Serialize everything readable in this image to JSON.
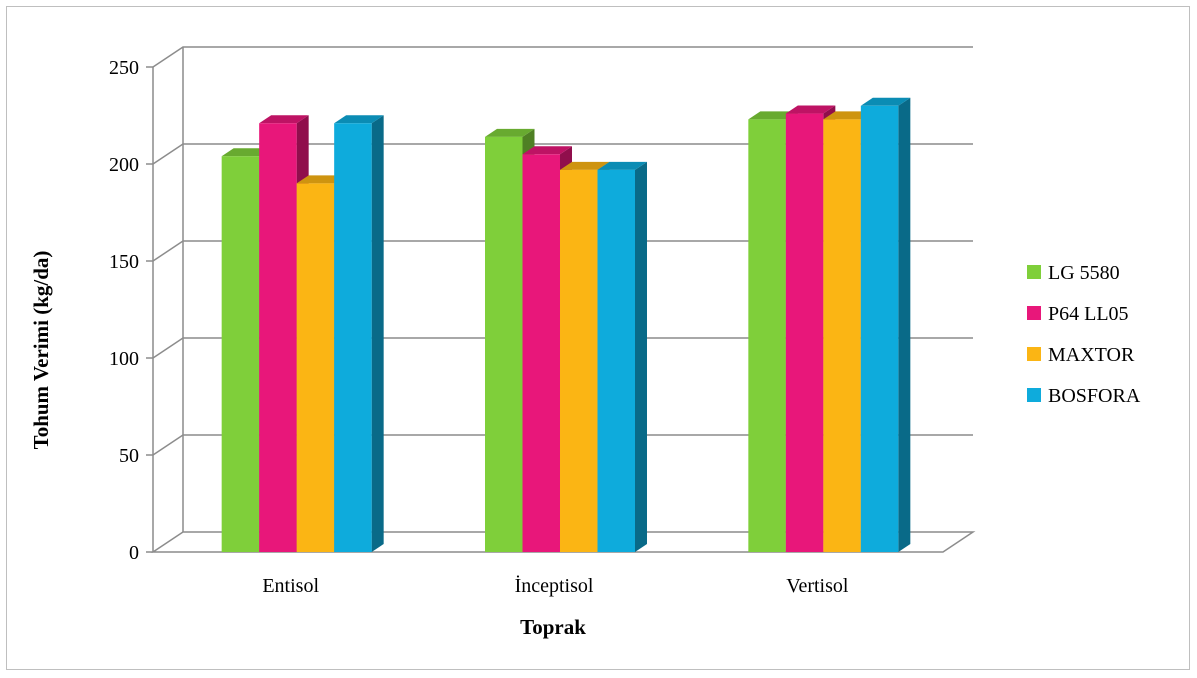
{
  "chart_data": {
    "type": "bar",
    "title": "",
    "xlabel": "Toprak",
    "ylabel": "Tohum Verimi (kg/da)",
    "categories": [
      "Entisol",
      "İnceptisol",
      "Vertisol"
    ],
    "series": [
      {
        "name": "LG 5580",
        "values": [
          204,
          214,
          223
        ],
        "color": "#7fcf3a"
      },
      {
        "name": "P64 LL05",
        "values": [
          221,
          205,
          226
        ],
        "color": "#e8177a"
      },
      {
        "name": "MAXTOR",
        "values": [
          190,
          197,
          223
        ],
        "color": "#fbb514"
      },
      {
        "name": "BOSFORA",
        "values": [
          221,
          197,
          230
        ],
        "color": "#0eabdc"
      }
    ],
    "yticks": [
      "0",
      "50",
      "100",
      "150",
      "200",
      "250"
    ],
    "ylim": [
      0,
      250
    ],
    "grid": true,
    "legend": "right"
  }
}
